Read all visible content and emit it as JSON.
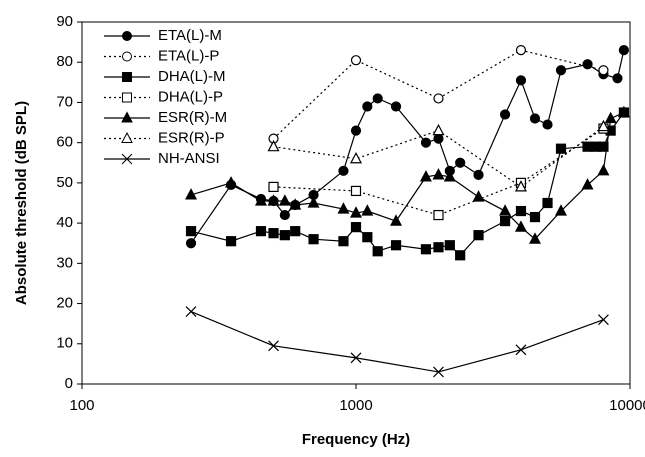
{
  "chart_data": {
    "type": "line",
    "xlabel": "Frequency (Hz)",
    "ylabel": "Absolute threshold (dB SPL)",
    "xscale": "log",
    "xlim": [
      100,
      10000
    ],
    "xticks": [
      100,
      1000,
      10000
    ],
    "ylim": [
      0,
      90
    ],
    "yticks": [
      0,
      10,
      20,
      30,
      40,
      50,
      60,
      70,
      80,
      90
    ],
    "legend": "upper left",
    "series": [
      {
        "name": "ETA(L)-M",
        "color": "#000000",
        "marker": "circle",
        "filled": true,
        "dashed": false,
        "x": [
          250,
          350,
          450,
          500,
          550,
          600,
          700,
          900,
          1000,
          1100,
          1200,
          1400,
          1800,
          2000,
          2200,
          2400,
          2800,
          3500,
          4000,
          4500,
          5000,
          5600,
          7000,
          8000,
          9000,
          9500
        ],
        "values": [
          35,
          49.5,
          46,
          45.5,
          42,
          44.5,
          47,
          53,
          63,
          69,
          71,
          69,
          60,
          61,
          53,
          55,
          52,
          67,
          75.5,
          66,
          64.5,
          78,
          79.5,
          77,
          76,
          83
        ]
      },
      {
        "name": "ETA(L)-P",
        "color": "#000000",
        "marker": "circle",
        "filled": false,
        "dashed": true,
        "x": [
          500,
          1000,
          2000,
          4000,
          8000
        ],
        "values": [
          61,
          80.5,
          71,
          83,
          78
        ]
      },
      {
        "name": "DHA(L)-M",
        "color": "#000000",
        "marker": "square",
        "filled": true,
        "dashed": false,
        "x": [
          250,
          350,
          450,
          500,
          550,
          600,
          700,
          900,
          1000,
          1100,
          1200,
          1400,
          1800,
          2000,
          2200,
          2400,
          2800,
          3500,
          4000,
          4500,
          5000,
          5600,
          7000,
          7500,
          8000,
          8500,
          9500
        ],
        "values": [
          38,
          35.5,
          38,
          37.5,
          37,
          38,
          36,
          35.5,
          39,
          36.5,
          33,
          34.5,
          33.5,
          34,
          34.5,
          32,
          37,
          40.5,
          43,
          41.5,
          45,
          58.5,
          59,
          59,
          59,
          63,
          67.5
        ]
      },
      {
        "name": "DHA(L)-P",
        "color": "#000000",
        "marker": "square",
        "filled": false,
        "dashed": true,
        "x": [
          500,
          1000,
          2000,
          4000,
          8000
        ],
        "values": [
          49,
          48,
          42,
          50,
          63.5
        ]
      },
      {
        "name": "ESR(R)-M",
        "color": "#000000",
        "marker": "triangle",
        "filled": true,
        "dashed": false,
        "x": [
          250,
          350,
          450,
          500,
          550,
          600,
          700,
          900,
          1000,
          1100,
          1400,
          1800,
          2000,
          2200,
          2800,
          3500,
          4000,
          4500,
          5600,
          7000,
          8000,
          8500,
          9500
        ],
        "values": [
          47,
          50,
          45.5,
          45.5,
          45.5,
          44.5,
          45,
          43.5,
          42.5,
          43,
          40.5,
          51.5,
          52,
          51.5,
          46.5,
          43,
          39,
          36,
          43,
          49.5,
          53,
          66,
          67.5
        ]
      },
      {
        "name": "ESR(R)-P",
        "color": "#000000",
        "marker": "triangle",
        "filled": false,
        "dashed": true,
        "x": [
          500,
          1000,
          2000,
          4000,
          8000
        ],
        "values": [
          59,
          56,
          63,
          49,
          64
        ]
      },
      {
        "name": "NH-ANSI",
        "color": "#000000",
        "marker": "x",
        "filled": false,
        "dashed": false,
        "x": [
          250,
          500,
          1000,
          2000,
          4000,
          8000
        ],
        "values": [
          18,
          9.5,
          6.5,
          3,
          8.5,
          16
        ]
      }
    ]
  }
}
